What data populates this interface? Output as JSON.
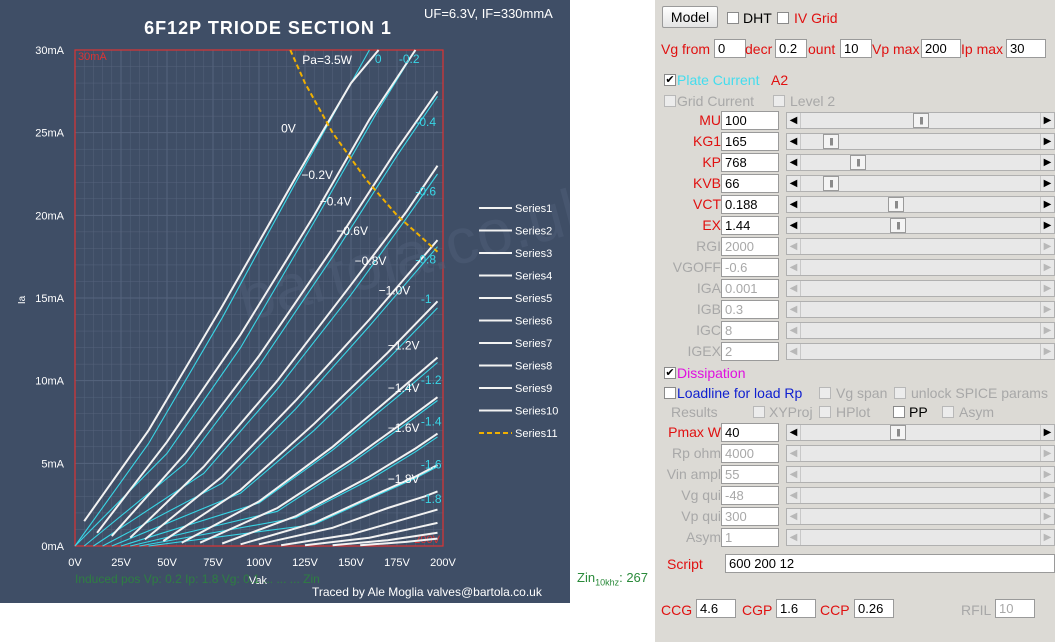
{
  "chart": {
    "title": "6F12P  TRIODE SECTION 1",
    "conditions": "UF=6.3V, IF=330mmA",
    "corner_label_top": "30mA",
    "corner_label_bottom": "200V",
    "pa_label": "Pa=3.5W",
    "credit": "Traced by Ale Moglia valves@bartola.co.uk",
    "footer_text": "Induced pos Vp: 0.2    Ip: 1.8    Vg: 0.1    ...    ...    ...    Zin",
    "zin_label": "Zin",
    "zin_sub": "10khz",
    "zin_value": ": 267",
    "watermark": "bartola.co.uk",
    "colors": {
      "bg": "#3f4e66",
      "grid": "#56647d",
      "border": "#dd3333",
      "white_curve": "#f2f2f2",
      "cyan_curve": "#38d6e6",
      "dissipation": "#f0b000",
      "axis_text": "#ffffff",
      "footer_text": "#2a8a3a",
      "credit_text": "#ffffff"
    }
  },
  "chart_data": {
    "type": "line",
    "title": "6F12P  TRIODE SECTION 1",
    "xlabel": "Vak",
    "ylabel": "Ia",
    "xlim": [
      0,
      200
    ],
    "ylim": [
      0,
      30
    ],
    "x_ticks": [
      "0V",
      "25V",
      "50V",
      "75V",
      "100V",
      "125V",
      "150V",
      "175V",
      "200V"
    ],
    "y_ticks": [
      "0mA",
      "5mA",
      "10mA",
      "15mA",
      "20mA",
      "25mA",
      "30mA"
    ],
    "grid": true,
    "legend_placement": "right",
    "legend": [
      "Series1",
      "Series2",
      "Series3",
      "Series4",
      "Series5",
      "Series6",
      "Series7",
      "Series8",
      "Series9",
      "Series10",
      "Series11"
    ],
    "traced_curves": [
      {
        "grid_label": "0V",
        "points": [
          [
            5,
            1.5
          ],
          [
            40,
            7
          ],
          [
            80,
            14.5
          ],
          [
            120,
            22.3
          ],
          [
            150,
            28
          ],
          [
            165,
            30
          ]
        ]
      },
      {
        "grid_label": "−0.2V",
        "points": [
          [
            12,
            0.8
          ],
          [
            50,
            6.3
          ],
          [
            90,
            12.8
          ],
          [
            130,
            20
          ],
          [
            160,
            25.8
          ],
          [
            185,
            30
          ]
        ]
      },
      {
        "grid_label": "−0.4V",
        "points": [
          [
            20,
            0.6
          ],
          [
            60,
            5.6
          ],
          [
            100,
            11.5
          ],
          [
            140,
            18
          ],
          [
            175,
            24
          ],
          [
            197,
            27.5
          ]
        ]
      },
      {
        "grid_label": "−0.6V",
        "points": [
          [
            30,
            0.5
          ],
          [
            70,
            4.8
          ],
          [
            110,
            10
          ],
          [
            150,
            15.8
          ],
          [
            180,
            20.2
          ],
          [
            197,
            23
          ]
        ]
      },
      {
        "grid_label": "−0.8V",
        "points": [
          [
            38,
            0.4
          ],
          [
            80,
            4.2
          ],
          [
            120,
            8.8
          ],
          [
            160,
            13.7
          ],
          [
            197,
            18.5
          ]
        ]
      },
      {
        "grid_label": "−1.0V",
        "points": [
          [
            48,
            0.3
          ],
          [
            90,
            3.4
          ],
          [
            130,
            7.4
          ],
          [
            170,
            11.7
          ],
          [
            197,
            14.8
          ]
        ]
      },
      {
        "grid_label": "−1.2V",
        "points": [
          [
            58,
            0.2
          ],
          [
            100,
            2.7
          ],
          [
            140,
            6
          ],
          [
            175,
            9.3
          ],
          [
            197,
            11.4
          ]
        ]
      },
      {
        "grid_label": "−1.4V",
        "points": [
          [
            68,
            0.2
          ],
          [
            110,
            2.3
          ],
          [
            150,
            5.2
          ],
          [
            180,
            7.6
          ],
          [
            197,
            9
          ]
        ]
      },
      {
        "grid_label": "−1.6V",
        "points": [
          [
            80,
            0.15
          ],
          [
            120,
            1.8
          ],
          [
            160,
            4.2
          ],
          [
            185,
            5.9
          ],
          [
            197,
            6.8
          ]
        ]
      },
      {
        "grid_label": "−1.8V",
        "points": [
          [
            90,
            0.1
          ],
          [
            130,
            1.4
          ],
          [
            165,
            3.2
          ],
          [
            185,
            4.2
          ],
          [
            197,
            4.9
          ]
        ]
      },
      {
        "grid_label": "",
        "points": [
          [
            100,
            0.1
          ],
          [
            140,
            1.1
          ],
          [
            170,
            2.3
          ],
          [
            190,
            3.0
          ],
          [
            197,
            3.3
          ]
        ]
      },
      {
        "grid_label": "",
        "points": [
          [
            112,
            0.05
          ],
          [
            150,
            0.7
          ],
          [
            175,
            1.5
          ],
          [
            197,
            2.2
          ]
        ]
      },
      {
        "grid_label": "",
        "points": [
          [
            125,
            0.05
          ],
          [
            160,
            0.5
          ],
          [
            185,
            1.1
          ],
          [
            197,
            1.4
          ]
        ]
      },
      {
        "grid_label": "",
        "points": [
          [
            140,
            0.05
          ],
          [
            170,
            0.35
          ],
          [
            197,
            0.8
          ]
        ]
      },
      {
        "grid_label": "",
        "points": [
          [
            155,
            0.05
          ],
          [
            180,
            0.25
          ],
          [
            197,
            0.45
          ]
        ]
      }
    ],
    "model_curves": [
      {
        "grid_label": "0",
        "points": [
          [
            0,
            0
          ],
          [
            40,
            6.2
          ],
          [
            80,
            13.8
          ],
          [
            120,
            22
          ],
          [
            145,
            27
          ],
          [
            160,
            30
          ]
        ]
      },
      {
        "grid_label": "-0.2",
        "points": [
          [
            0,
            0
          ],
          [
            50,
            5.6
          ],
          [
            90,
            12
          ],
          [
            130,
            19.6
          ],
          [
            165,
            26.4
          ],
          [
            185,
            30
          ]
        ]
      },
      {
        "grid_label": "-0.4",
        "points": [
          [
            5,
            0
          ],
          [
            60,
            5
          ],
          [
            100,
            10.9
          ],
          [
            140,
            17.5
          ],
          [
            175,
            23.6
          ],
          [
            197,
            27.2
          ]
        ]
      },
      {
        "grid_label": "-0.6",
        "points": [
          [
            10,
            0
          ],
          [
            70,
            4.4
          ],
          [
            110,
            9.5
          ],
          [
            150,
            15.2
          ],
          [
            180,
            19.8
          ],
          [
            197,
            22.5
          ]
        ]
      },
      {
        "grid_label": "-0.8",
        "points": [
          [
            15,
            0
          ],
          [
            80,
            3.8
          ],
          [
            120,
            8.3
          ],
          [
            160,
            13.3
          ],
          [
            197,
            18.1
          ]
        ]
      },
      {
        "grid_label": "-1",
        "points": [
          [
            20,
            0
          ],
          [
            90,
            3.2
          ],
          [
            130,
            7
          ],
          [
            170,
            11.3
          ],
          [
            197,
            14.4
          ]
        ]
      },
      {
        "grid_label": "-1.2",
        "points": [
          [
            25,
            0
          ],
          [
            100,
            2.6
          ],
          [
            140,
            5.8
          ],
          [
            175,
            9
          ],
          [
            197,
            11.1
          ]
        ]
      },
      {
        "grid_label": "-1.4",
        "points": [
          [
            30,
            0
          ],
          [
            110,
            2.1
          ],
          [
            150,
            5
          ],
          [
            180,
            7.4
          ],
          [
            197,
            8.8
          ]
        ]
      },
      {
        "grid_label": "-1.6",
        "points": [
          [
            35,
            0
          ],
          [
            120,
            1.7
          ],
          [
            160,
            4
          ],
          [
            185,
            5.7
          ],
          [
            197,
            6.6
          ]
        ]
      },
      {
        "grid_label": "-1.8",
        "points": [
          [
            40,
            0
          ],
          [
            130,
            1.3
          ],
          [
            165,
            3.1
          ],
          [
            185,
            4.1
          ],
          [
            197,
            4.8
          ]
        ]
      }
    ],
    "dissipation_curve": {
      "label": "Pa=3.5W",
      "watts": 3.5,
      "points": [
        [
          117,
          30
        ],
        [
          125,
          28
        ],
        [
          140,
          25
        ],
        [
          158,
          22.2
        ],
        [
          175,
          20
        ],
        [
          197,
          17.8
        ]
      ]
    }
  },
  "panel": {
    "model_button": "Model",
    "dht_label": "DHT",
    "iv_grid_label": "IV Grid",
    "vg_from_label": "Vg from",
    "vg_from_value": "0",
    "decr_label": "decr",
    "decr_value": "0.2",
    "count_label": "ount",
    "count_value": "10",
    "vpmax_label": "Vp max",
    "vpmax_value": "200",
    "ipmax_label": "Ip max",
    "ipmax_value": "30",
    "plate_current_label": "Plate Current",
    "a2_label": "A2",
    "grid_current_label": "Grid Current",
    "level2_label": "Level 2",
    "params": [
      {
        "name": "MU",
        "value": "100",
        "pos": 0.5,
        "enabled": true
      },
      {
        "name": "KG1",
        "value": "165",
        "pos": 0.1,
        "enabled": true
      },
      {
        "name": "KP",
        "value": "768",
        "pos": 0.22,
        "enabled": true
      },
      {
        "name": "KVB",
        "value": "66",
        "pos": 0.1,
        "enabled": true
      },
      {
        "name": "VCT",
        "value": "0.188",
        "pos": 0.39,
        "enabled": true
      },
      {
        "name": "EX",
        "value": "1.44",
        "pos": 0.4,
        "enabled": true
      },
      {
        "name": "RGI",
        "value": "2000",
        "pos": 0,
        "enabled": false
      },
      {
        "name": "VGOFF",
        "value": "-0.6",
        "pos": 0,
        "enabled": false
      },
      {
        "name": "IGA",
        "value": "0.001",
        "pos": 0,
        "enabled": false
      },
      {
        "name": "IGB",
        "value": "0.3",
        "pos": 0,
        "enabled": false
      },
      {
        "name": "IGC",
        "value": "8",
        "pos": 0,
        "enabled": false
      },
      {
        "name": "IGEX",
        "value": "2",
        "pos": 0,
        "enabled": false
      }
    ],
    "dissipation_label": "Dissipation",
    "loadline_label": "Loadline for load Rp",
    "vg_span_label": "Vg span",
    "unlock_label": "unlock SPICE params",
    "results_label": "Results",
    "xyproj_label": "XYProj",
    "hplot_label": "HPlot",
    "pp_label": "PP",
    "asym_chk_label": "Asym",
    "load_params": [
      {
        "name": "Pmax W",
        "value": "40",
        "pos": 0.4,
        "enabled": true
      },
      {
        "name": "Rp ohm",
        "value": "4000",
        "pos": 0,
        "enabled": false
      },
      {
        "name": "Vin ampl",
        "value": "55",
        "pos": 0,
        "enabled": false
      },
      {
        "name": "Vg qui",
        "value": "-48",
        "pos": 0,
        "enabled": false
      },
      {
        "name": "Vp qui",
        "value": "300",
        "pos": 0,
        "enabled": false
      },
      {
        "name": "Asym",
        "value": "1",
        "pos": 0,
        "enabled": false
      }
    ],
    "script_label": "Script",
    "script_value": "600 200 12",
    "ccg_label": "CCG",
    "ccg_value": "4.6",
    "cgp_label": "CGP",
    "cgp_value": "1.6",
    "ccp_label": "CCP",
    "ccp_value": "0.26",
    "rfil_label": "RFIL",
    "rfil_value": "10",
    "colors": {
      "bg": "#dcdad5",
      "label_red": "#e01010",
      "label_gray": "#a8a8a8",
      "cyan": "#44ddee",
      "magenta": "#e010e0",
      "blue": "#1020d0"
    }
  }
}
